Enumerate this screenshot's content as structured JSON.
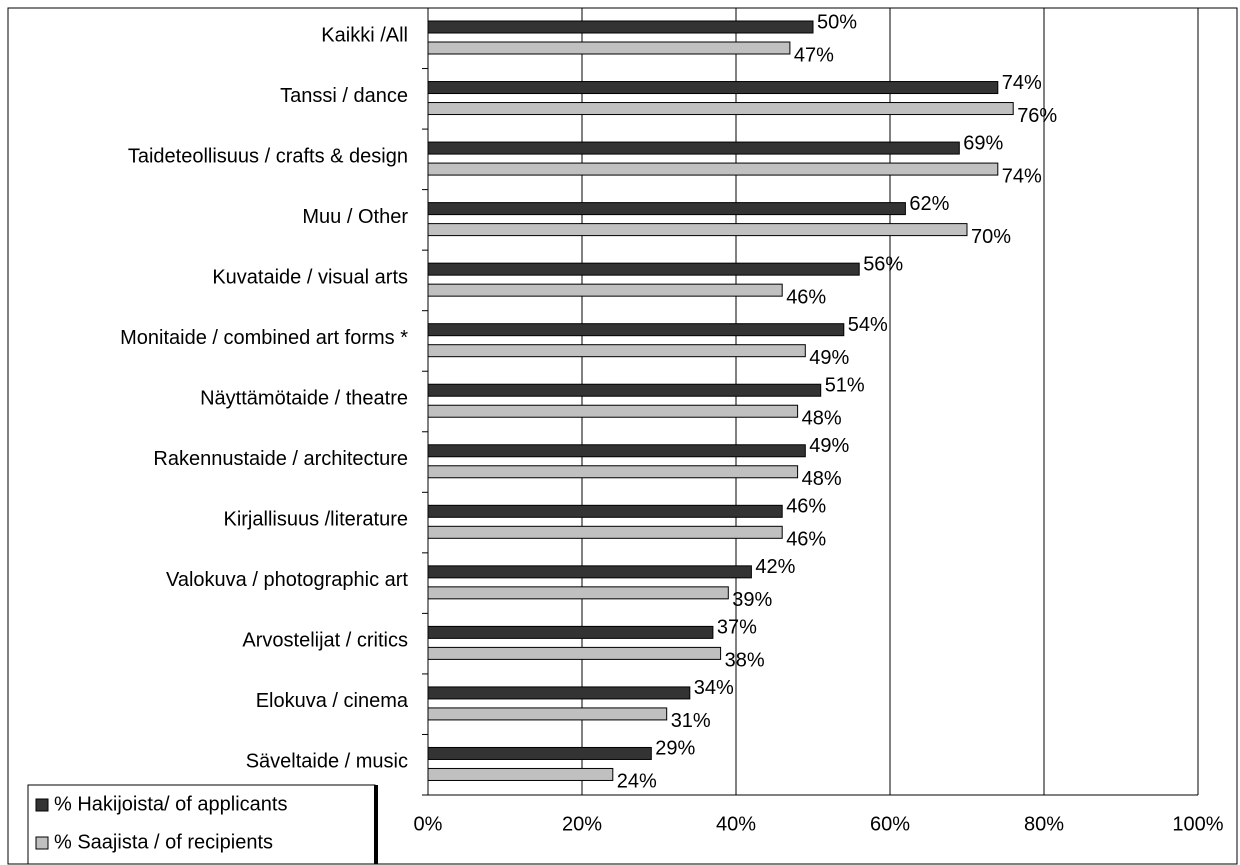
{
  "chart_data": {
    "type": "hbar",
    "categories": [
      "Kaikki /All",
      "Tanssi / dance",
      "Taideteollisuus / crafts & design",
      "Muu / Other",
      "Kuvataide / visual arts",
      "Monitaide / combined art forms *",
      "Näyttämötaide / theatre",
      "Rakennustaide / architecture",
      "Kirjallisuus /literature",
      "Valokuva / photographic art",
      "Arvostelijat / critics",
      "Elokuva / cinema",
      "Säveltaide / music"
    ],
    "series": [
      {
        "name": "% Hakijoista/ of applicants",
        "color": "#333333",
        "values": [
          50,
          74,
          69,
          62,
          56,
          54,
          51,
          49,
          46,
          42,
          37,
          34,
          29
        ],
        "value_labels": [
          "50%",
          "74%",
          "69%",
          "62%",
          "56%",
          "54%",
          "51%",
          "49%",
          "46%",
          "42%",
          "37%",
          "34%",
          "29%"
        ]
      },
      {
        "name": "% Saajista / of recipients",
        "color": "#c0c0c0",
        "values": [
          47,
          76,
          74,
          70,
          46,
          49,
          48,
          48,
          46,
          39,
          38,
          31,
          24
        ],
        "value_labels": [
          "47%",
          "76%",
          "74%",
          "70%",
          "46%",
          "49%",
          "48%",
          "48%",
          "46%",
          "39%",
          "38%",
          "31%",
          "24%"
        ]
      }
    ],
    "xlim": [
      0,
      100
    ],
    "xticks": [
      {
        "value": 0,
        "label": "0%"
      },
      {
        "value": 20,
        "label": "20%"
      },
      {
        "value": 40,
        "label": "40%"
      },
      {
        "value": 60,
        "label": "60%"
      },
      {
        "value": 80,
        "label": "80%"
      },
      {
        "value": 100,
        "label": "100%"
      }
    ],
    "grid": true,
    "legend": "lower left"
  }
}
